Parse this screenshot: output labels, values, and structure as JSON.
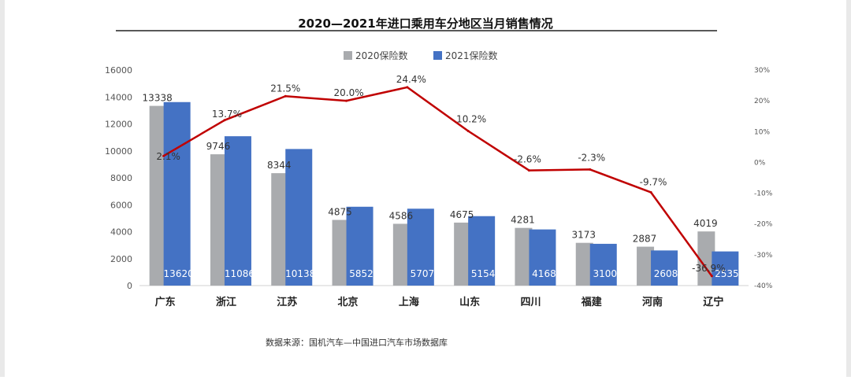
{
  "chart_data": {
    "type": "bar",
    "title": "2020—2021年进口乘用车分地区当月销售情况",
    "categories": [
      "广东",
      "浙江",
      "江苏",
      "北京",
      "上海",
      "山东",
      "四川",
      "福建",
      "河南",
      "辽宁"
    ],
    "series": [
      {
        "name": "2020保险数",
        "type": "bar",
        "axis": "left",
        "color": "#a9abae",
        "values": [
          13338,
          9746,
          8344,
          4875,
          4586,
          4675,
          4281,
          3173,
          2887,
          4019
        ],
        "labels": [
          "13338",
          "9746",
          "8344",
          "4875",
          "4586",
          "4675",
          "4281",
          "3173",
          "2887",
          "4019"
        ]
      },
      {
        "name": "2021保险数",
        "type": "bar",
        "axis": "left",
        "color": "#4472c4",
        "values": [
          13620,
          11086,
          10138,
          5852,
          5707,
          5154,
          4168,
          3100,
          2608,
          2535
        ],
        "labels": [
          "13620",
          "11086",
          "10138",
          "5852",
          "5707",
          "5154",
          "4168",
          "3100",
          "2608",
          "2535"
        ]
      },
      {
        "type": "line",
        "axis": "right",
        "color": "#c00000",
        "values": [
          2.1,
          13.7,
          21.5,
          20.0,
          24.4,
          10.2,
          -2.6,
          -2.3,
          -9.7,
          -36.9
        ],
        "labels": [
          "2.1%",
          "13.7%",
          "21.5%",
          "20.0%",
          "24.4%",
          "10.2%",
          "-2.6%",
          "-2.3%",
          "-9.7%",
          "-36.9%"
        ]
      }
    ],
    "y_left": {
      "min": 0,
      "max": 16000,
      "ticks": [
        0,
        2000,
        4000,
        6000,
        8000,
        10000,
        12000,
        14000,
        16000
      ],
      "tick_labels": [
        "0",
        "2000",
        "4000",
        "6000",
        "8000",
        "10000",
        "12000",
        "14000",
        "16000"
      ]
    },
    "y_right": {
      "min": -40,
      "max": 30,
      "ticks": [
        -40,
        -30,
        -20,
        -10,
        0,
        10,
        20,
        30
      ],
      "tick_labels": [
        "-40%",
        "-30%",
        "-20%",
        "-10%",
        "0%",
        "10%",
        "20%",
        "30%"
      ]
    },
    "grid": false,
    "legend_position": "top-center"
  },
  "source_note": "数据来源：国机汽车—中国进口汽车市场数据库"
}
